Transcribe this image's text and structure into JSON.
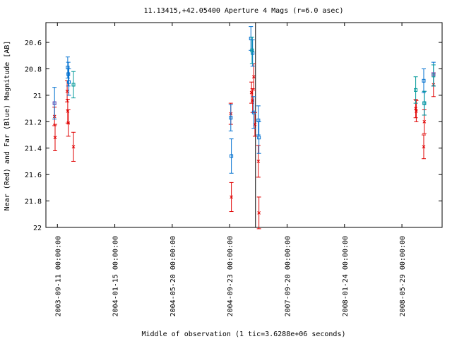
{
  "chart_data": {
    "type": "scatter",
    "title": "11.13415,+42.05400   Aperture 4 Mags (r=6.0 asec)",
    "xlabel": "Middle of observation (1 tic=3.6288e+06 seconds)",
    "ylabel": "Near (Red) and Far (Blue) Magnitude [AB]",
    "ylim": [
      22.0,
      20.45
    ],
    "y_inverted": true,
    "yticks": [
      20.6,
      20.8,
      21,
      21.2,
      21.4,
      21.6,
      21.8,
      22
    ],
    "ytick_labels": [
      "20.6",
      "20.8",
      "21",
      "21.2",
      "21.4",
      "21.6",
      "21.8",
      "22"
    ],
    "xtick_labels": [
      "2003-09-11 00:00:00",
      "2004-01-15 00:00:00",
      "2004-05-20 00:00:00",
      "2004-09-23 00:00:00",
      "2007-09-20 00:00:00",
      "2008-01-24 00:00:00",
      "2008-05-29 00:00:00",
      "2008-10-02 00:00:00"
    ],
    "xtick_count": 8,
    "x_range_tic_units": [
      -0.2,
      6.7
    ],
    "x_break_at": 3.45,
    "series": [
      {
        "color": "#e00000",
        "marker": "x",
        "points": [
          {
            "x": -0.05,
            "y": 21.16,
            "err": 0.07
          },
          {
            "x": -0.04,
            "y": 21.32,
            "err": 0.1
          },
          {
            "x": 0.17,
            "y": 20.97,
            "err": 0.08
          },
          {
            "x": 0.18,
            "y": 21.12,
            "err": 0.09
          },
          {
            "x": 0.19,
            "y": 21.21,
            "err": 0.1
          },
          {
            "x": 0.28,
            "y": 21.39,
            "err": 0.11
          },
          {
            "x": 3.02,
            "y": 21.14,
            "err": 0.08
          },
          {
            "x": 3.03,
            "y": 21.77,
            "err": 0.11
          },
          {
            "x": 3.38,
            "y": 20.98,
            "err": 0.08
          },
          {
            "x": 3.4,
            "y": 21.04,
            "err": 0.09
          },
          {
            "x": 3.42,
            "y": 20.86,
            "err": 0.1
          },
          {
            "x": 3.44,
            "y": 21.22,
            "err": 0.09
          },
          {
            "x": 3.5,
            "y": 21.5,
            "err": 0.12
          },
          {
            "x": 3.51,
            "y": 21.89,
            "err": 0.12
          },
          {
            "x": 6.24,
            "y": 21.1,
            "err": 0.07
          },
          {
            "x": 6.25,
            "y": 21.12,
            "err": 0.08
          },
          {
            "x": 6.38,
            "y": 21.39,
            "err": 0.09
          },
          {
            "x": 6.39,
            "y": 21.2,
            "err": 0.09
          },
          {
            "x": 6.55,
            "y": 20.92,
            "err": 0.09
          }
        ]
      },
      {
        "color": "#0070d0",
        "marker": "square",
        "points": [
          {
            "x": -0.05,
            "y": 21.06,
            "err": 0.12
          },
          {
            "x": 0.18,
            "y": 20.79,
            "err": 0.08
          },
          {
            "x": 0.19,
            "y": 20.84,
            "err": 0.09
          },
          {
            "x": 0.2,
            "y": 20.9,
            "err": 0.1
          },
          {
            "x": 3.02,
            "y": 21.17,
            "err": 0.1
          },
          {
            "x": 3.03,
            "y": 21.46,
            "err": 0.13
          },
          {
            "x": 3.37,
            "y": 20.57,
            "err": 0.09
          },
          {
            "x": 3.4,
            "y": 20.68,
            "err": 0.1
          },
          {
            "x": 3.42,
            "y": 21.13,
            "err": 0.12
          },
          {
            "x": 3.5,
            "y": 21.19,
            "err": 0.11
          },
          {
            "x": 3.51,
            "y": 21.32,
            "err": 0.12
          },
          {
            "x": 6.38,
            "y": 20.89,
            "err": 0.09
          },
          {
            "x": 6.39,
            "y": 21.06,
            "err": 0.09
          },
          {
            "x": 6.55,
            "y": 20.84,
            "err": 0.09
          }
        ]
      },
      {
        "color": "#009999",
        "marker": "square",
        "points": [
          {
            "x": 0.28,
            "y": 20.92,
            "err": 0.1
          },
          {
            "x": 3.39,
            "y": 20.66,
            "err": 0.1
          },
          {
            "x": 6.24,
            "y": 20.96,
            "err": 0.1
          },
          {
            "x": 6.39,
            "y": 21.06,
            "err": 0.09
          },
          {
            "x": 6.55,
            "y": 20.85,
            "err": 0.08
          }
        ]
      },
      {
        "color": "#8050b0",
        "marker": "square",
        "points": [
          {
            "x": -0.05,
            "y": 21.06,
            "err": 0.0
          },
          {
            "x": 6.55,
            "y": 20.84,
            "err": 0.0
          }
        ]
      }
    ],
    "grid": false
  }
}
